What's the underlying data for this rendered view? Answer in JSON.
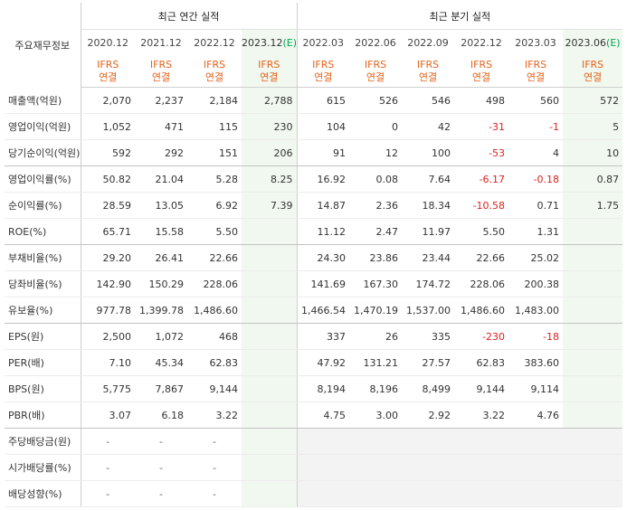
{
  "header": {
    "corner_label": "주요재무정보",
    "annual_title": "최근 연간 실적",
    "quarter_title": "최근 분기 실적",
    "annual_periods": [
      "2020.12",
      "2021.12",
      "2022.12",
      "2023.12"
    ],
    "annual_estimate_mark": "(E)",
    "quarter_periods": [
      "2022.03",
      "2022.06",
      "2022.09",
      "2022.12",
      "2023.03",
      "2023.06"
    ],
    "quarter_estimate_mark": "(E)",
    "ifrs_line1": "IFRS",
    "ifrs_line2": "연결"
  },
  "rows": [
    {
      "label": "매출액(억원)",
      "annual": [
        "2,070",
        "2,237",
        "2,184",
        "2,788"
      ],
      "quarter": [
        "615",
        "526",
        "546",
        "498",
        "560",
        "572"
      ]
    },
    {
      "label": "영업이익(억원)",
      "annual": [
        "1,052",
        "471",
        "115",
        "230"
      ],
      "quarter": [
        "104",
        "0",
        "42",
        "-31",
        "-1",
        "5"
      ]
    },
    {
      "label": "당기순이익(억원)",
      "annual": [
        "592",
        "292",
        "151",
        "206"
      ],
      "quarter": [
        "91",
        "12",
        "100",
        "-53",
        "4",
        "10"
      ]
    },
    {
      "label": "영업이익률(%)",
      "annual": [
        "50.82",
        "21.04",
        "5.28",
        "8.25"
      ],
      "quarter": [
        "16.92",
        "0.08",
        "7.64",
        "-6.17",
        "-0.18",
        "0.87"
      ]
    },
    {
      "label": "순이익률(%)",
      "annual": [
        "28.59",
        "13.05",
        "6.92",
        "7.39"
      ],
      "quarter": [
        "14.87",
        "2.36",
        "18.34",
        "-10.58",
        "0.71",
        "1.75"
      ]
    },
    {
      "label": "ROE(%)",
      "annual": [
        "65.71",
        "15.58",
        "5.50",
        ""
      ],
      "quarter": [
        "11.12",
        "2.47",
        "11.97",
        "5.50",
        "1.31",
        ""
      ]
    },
    {
      "label": "부채비율(%)",
      "annual": [
        "29.20",
        "26.41",
        "22.66",
        ""
      ],
      "quarter": [
        "24.30",
        "23.86",
        "23.44",
        "22.66",
        "25.02",
        ""
      ]
    },
    {
      "label": "당좌비율(%)",
      "annual": [
        "142.90",
        "150.29",
        "228.06",
        ""
      ],
      "quarter": [
        "141.69",
        "167.30",
        "174.72",
        "228.06",
        "200.38",
        ""
      ]
    },
    {
      "label": "유보율(%)",
      "annual": [
        "977.78",
        "1,399.78",
        "1,486.60",
        ""
      ],
      "quarter": [
        "1,466.54",
        "1,470.19",
        "1,537.00",
        "1,486.60",
        "1,483.00",
        ""
      ]
    },
    {
      "label": "EPS(원)",
      "annual": [
        "2,500",
        "1,072",
        "468",
        ""
      ],
      "quarter": [
        "337",
        "26",
        "335",
        "-230",
        "-18",
        ""
      ]
    },
    {
      "label": "PER(배)",
      "annual": [
        "7.10",
        "45.34",
        "62.83",
        ""
      ],
      "quarter": [
        "47.92",
        "131.21",
        "27.57",
        "62.83",
        "383.60",
        ""
      ]
    },
    {
      "label": "BPS(원)",
      "annual": [
        "5,775",
        "7,867",
        "9,144",
        ""
      ],
      "quarter": [
        "8,194",
        "8,196",
        "8,499",
        "9,144",
        "9,114",
        ""
      ]
    },
    {
      "label": "PBR(배)",
      "annual": [
        "3.07",
        "6.18",
        "3.22",
        ""
      ],
      "quarter": [
        "4.75",
        "3.00",
        "2.92",
        "3.22",
        "4.76",
        ""
      ]
    },
    {
      "label": "주당배당금(원)",
      "annual": [
        "-",
        "-",
        "-",
        ""
      ],
      "quarter": [
        "",
        "",
        "",
        "",
        "",
        ""
      ]
    },
    {
      "label": "시가배당률(%)",
      "annual": [
        "-",
        "-",
        "-",
        ""
      ],
      "quarter": [
        "",
        "",
        "",
        "",
        "",
        ""
      ]
    },
    {
      "label": "배당성향(%)",
      "annual": [
        "-",
        "-",
        "-",
        ""
      ],
      "quarter": [
        "",
        "",
        "",
        "",
        "",
        ""
      ]
    }
  ],
  "colors": {
    "ifrs": "#e4631b",
    "negative": "#e0201b",
    "estimate_bg": "#f1f8ef",
    "estimate_mark": "#00a651"
  }
}
